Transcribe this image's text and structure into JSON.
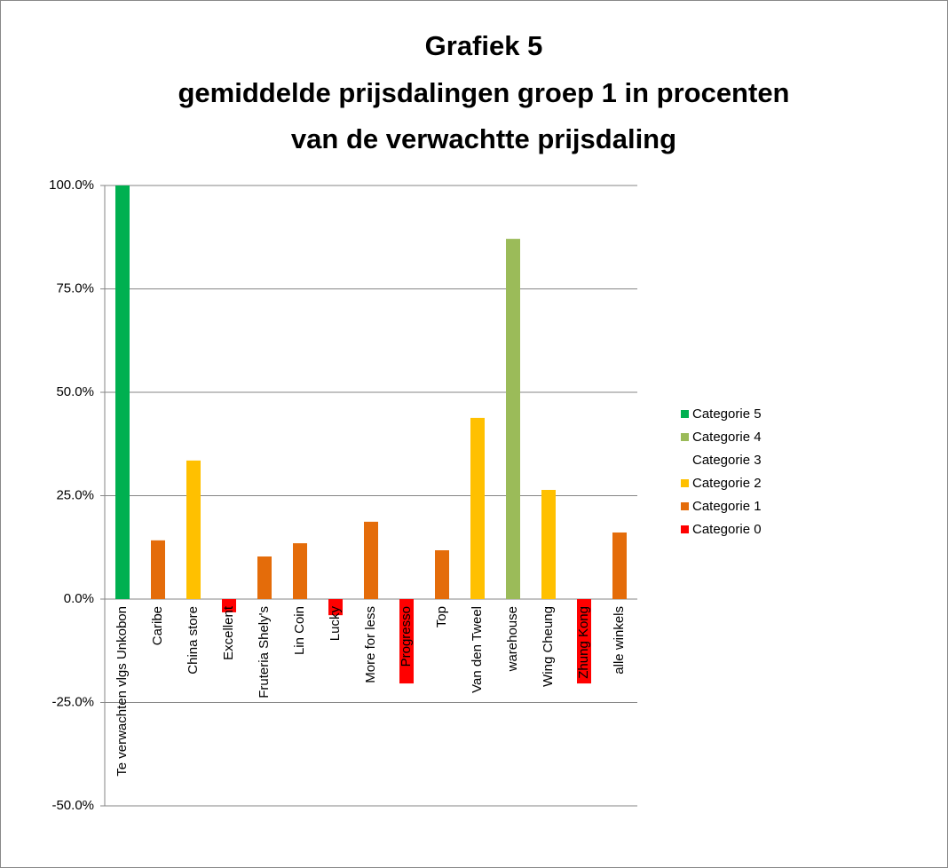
{
  "chart_data": {
    "type": "bar",
    "title": [
      "Grafiek 5",
      "gemiddelde prijsdalingen groep 1 in procenten",
      "van de verwachtte prijsdaling"
    ],
    "categories": [
      "Te verwachten vlgs Unkobon",
      "Caribe",
      "China store",
      "Excellent",
      "Fruteria Shely's",
      "Lin Coin",
      "Lucky",
      "More for less",
      "Progresso",
      "Top",
      "Van den Tweel",
      "warehouse",
      "Wing Cheung",
      "Zhung Kong",
      "alle winkels"
    ],
    "series": [
      {
        "name": "Categorie 5",
        "color": "#00b050",
        "values": [
          100,
          null,
          null,
          null,
          null,
          null,
          null,
          null,
          null,
          null,
          null,
          null,
          null,
          null,
          null
        ]
      },
      {
        "name": "Categorie 4",
        "color": "#9bbb59",
        "values": [
          null,
          null,
          null,
          null,
          null,
          null,
          null,
          null,
          null,
          null,
          null,
          87.1,
          null,
          null,
          null
        ]
      },
      {
        "name": "Categorie 3",
        "color": "#ffffff",
        "values": [
          null,
          null,
          null,
          null,
          null,
          null,
          null,
          null,
          null,
          null,
          null,
          null,
          null,
          null,
          null
        ]
      },
      {
        "name": "Categorie 2",
        "color": "#ffc000",
        "values": [
          null,
          null,
          33.5,
          null,
          null,
          null,
          null,
          null,
          null,
          null,
          43.8,
          null,
          26.4,
          null,
          null
        ]
      },
      {
        "name": "Categorie 1",
        "color": "#e46c0a",
        "values": [
          null,
          14.2,
          null,
          null,
          10.3,
          13.5,
          null,
          18.7,
          null,
          11.8,
          null,
          null,
          null,
          null,
          16.1
        ]
      },
      {
        "name": "Categorie 0",
        "color": "#ff0000",
        "values": [
          null,
          null,
          null,
          -3.2,
          null,
          null,
          -3.9,
          null,
          -20.4,
          null,
          null,
          null,
          null,
          -20.4,
          null
        ]
      }
    ],
    "ylim": [
      -50,
      100
    ],
    "yticks": [
      {
        "value": -50,
        "label": "-50.0%"
      },
      {
        "value": -25,
        "label": "-25.0%"
      },
      {
        "value": 0,
        "label": "0.0%"
      },
      {
        "value": 25,
        "label": "25.0%"
      },
      {
        "value": 50,
        "label": "50.0%"
      },
      {
        "value": 75,
        "label": "75.0%"
      },
      {
        "value": 100,
        "label": "100.0%"
      }
    ],
    "grid": true,
    "legend": "right"
  }
}
